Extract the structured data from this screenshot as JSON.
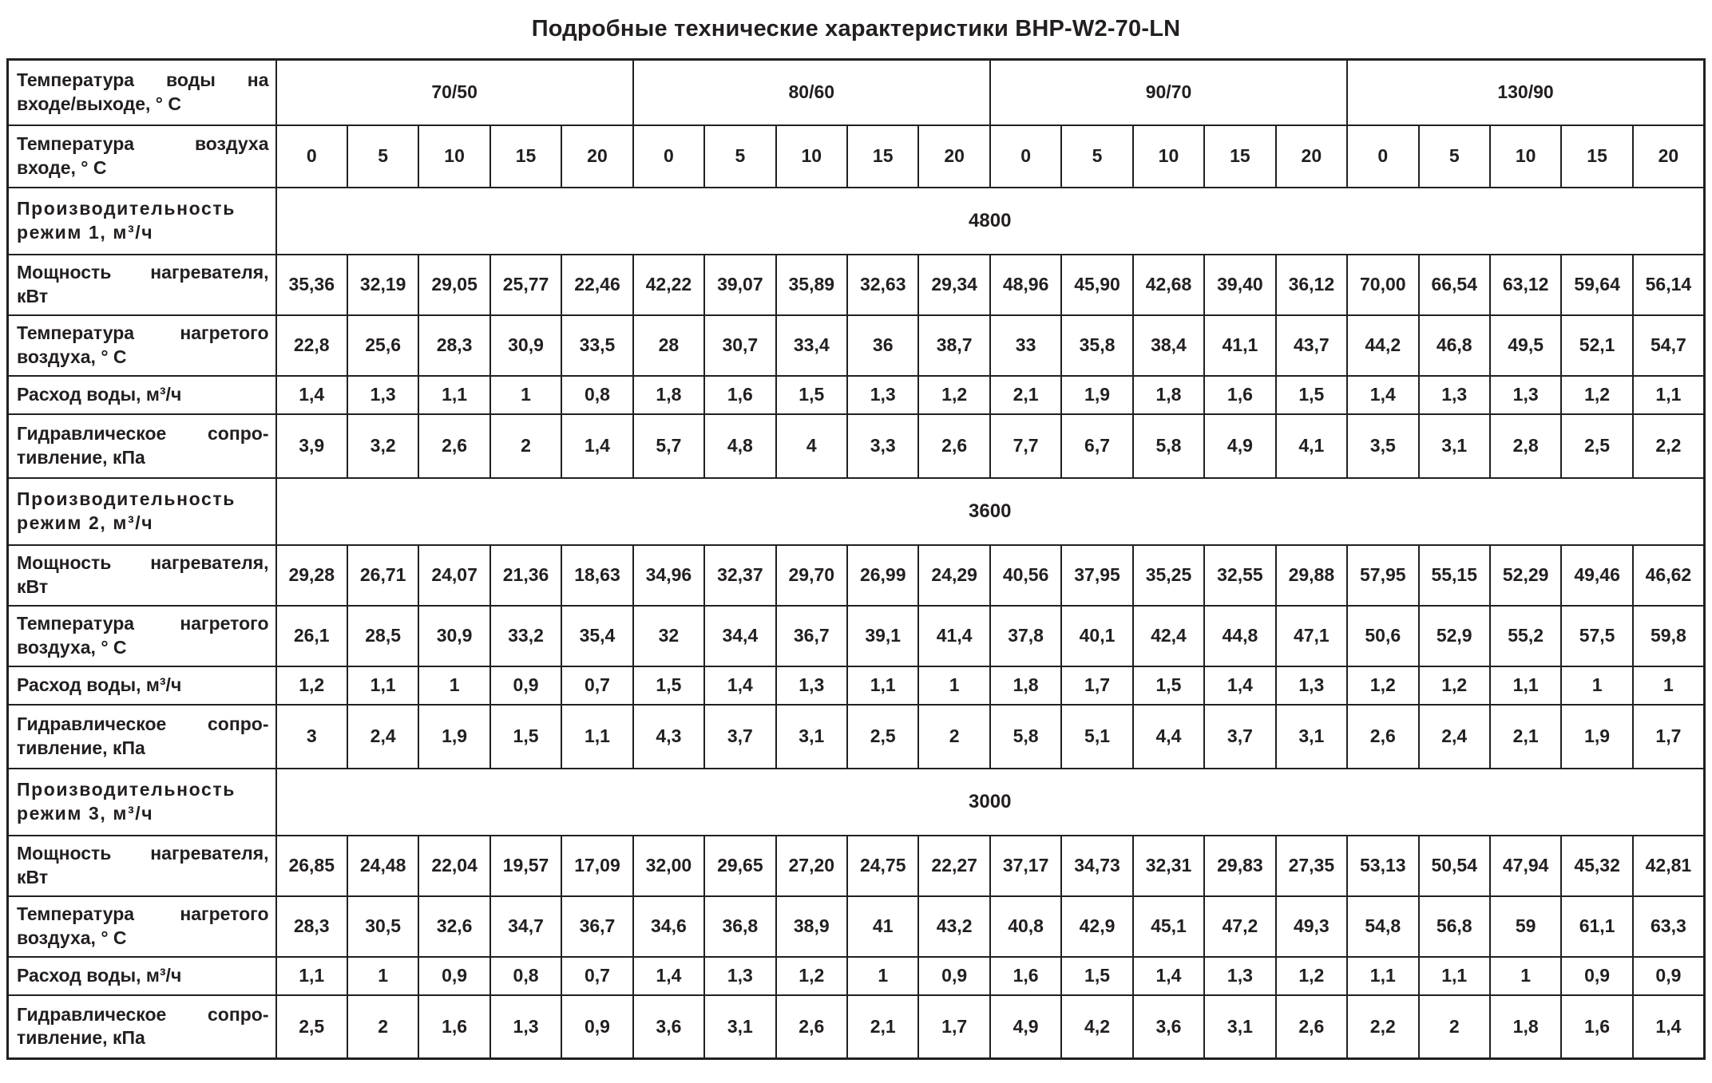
{
  "title": "Подробные технические характеристики BHP-W2-70-LN",
  "table": {
    "row_labels": {
      "water_temp": "Температура воды на входе/выходе, ° С",
      "air_temp": "Температура воздуха входе, ° С",
      "heater_power": "Мощность нагревателя, кВт",
      "heated_air_temp": "Температура нагретого воздуха, ° С",
      "water_flow": "Расход воды, м³/ч",
      "hydraulic_resistance": "Гидравлическое сопро-тивление, кПа"
    },
    "water_temp_groups": [
      "70/50",
      "80/60",
      "90/70",
      "130/90"
    ],
    "air_temp_row": [
      "0",
      "5",
      "10",
      "15",
      "20",
      "0",
      "5",
      "10",
      "15",
      "20",
      "0",
      "5",
      "10",
      "15",
      "20",
      "0",
      "5",
      "10",
      "15",
      "20"
    ],
    "sections": [
      {
        "capacity_label": "Производительность режим 1, м³/ч",
        "capacity_value": "4800",
        "heater_power": [
          "35,36",
          "32,19",
          "29,05",
          "25,77",
          "22,46",
          "42,22",
          "39,07",
          "35,89",
          "32,63",
          "29,34",
          "48,96",
          "45,90",
          "42,68",
          "39,40",
          "36,12",
          "70,00",
          "66,54",
          "63,12",
          "59,64",
          "56,14"
        ],
        "heated_air_temp": [
          "22,8",
          "25,6",
          "28,3",
          "30,9",
          "33,5",
          "28",
          "30,7",
          "33,4",
          "36",
          "38,7",
          "33",
          "35,8",
          "38,4",
          "41,1",
          "43,7",
          "44,2",
          "46,8",
          "49,5",
          "52,1",
          "54,7"
        ],
        "water_flow": [
          "1,4",
          "1,3",
          "1,1",
          "1",
          "0,8",
          "1,8",
          "1,6",
          "1,5",
          "1,3",
          "1,2",
          "2,1",
          "1,9",
          "1,8",
          "1,6",
          "1,5",
          "1,4",
          "1,3",
          "1,3",
          "1,2",
          "1,1"
        ],
        "hydraulic_resistance": [
          "3,9",
          "3,2",
          "2,6",
          "2",
          "1,4",
          "5,7",
          "4,8",
          "4",
          "3,3",
          "2,6",
          "7,7",
          "6,7",
          "5,8",
          "4,9",
          "4,1",
          "3,5",
          "3,1",
          "2,8",
          "2,5",
          "2,2"
        ]
      },
      {
        "capacity_label": "Производительность режим 2, м³/ч",
        "capacity_value": "3600",
        "heater_power": [
          "29,28",
          "26,71",
          "24,07",
          "21,36",
          "18,63",
          "34,96",
          "32,37",
          "29,70",
          "26,99",
          "24,29",
          "40,56",
          "37,95",
          "35,25",
          "32,55",
          "29,88",
          "57,95",
          "55,15",
          "52,29",
          "49,46",
          "46,62"
        ],
        "heated_air_temp": [
          "26,1",
          "28,5",
          "30,9",
          "33,2",
          "35,4",
          "32",
          "34,4",
          "36,7",
          "39,1",
          "41,4",
          "37,8",
          "40,1",
          "42,4",
          "44,8",
          "47,1",
          "50,6",
          "52,9",
          "55,2",
          "57,5",
          "59,8"
        ],
        "water_flow": [
          "1,2",
          "1,1",
          "1",
          "0,9",
          "0,7",
          "1,5",
          "1,4",
          "1,3",
          "1,1",
          "1",
          "1,8",
          "1,7",
          "1,5",
          "1,4",
          "1,3",
          "1,2",
          "1,2",
          "1,1",
          "1",
          "1"
        ],
        "hydraulic_resistance": [
          "3",
          "2,4",
          "1,9",
          "1,5",
          "1,1",
          "4,3",
          "3,7",
          "3,1",
          "2,5",
          "2",
          "5,8",
          "5,1",
          "4,4",
          "3,7",
          "3,1",
          "2,6",
          "2,4",
          "2,1",
          "1,9",
          "1,7"
        ]
      },
      {
        "capacity_label": "Производительность режим 3, м³/ч",
        "capacity_value": "3000",
        "heater_power": [
          "26,85",
          "24,48",
          "22,04",
          "19,57",
          "17,09",
          "32,00",
          "29,65",
          "27,20",
          "24,75",
          "22,27",
          "37,17",
          "34,73",
          "32,31",
          "29,83",
          "27,35",
          "53,13",
          "50,54",
          "47,94",
          "45,32",
          "42,81"
        ],
        "heated_air_temp": [
          "28,3",
          "30,5",
          "32,6",
          "34,7",
          "36,7",
          "34,6",
          "36,8",
          "38,9",
          "41",
          "43,2",
          "40,8",
          "42,9",
          "45,1",
          "47,2",
          "49,3",
          "54,8",
          "56,8",
          "59",
          "61,1",
          "63,3"
        ],
        "water_flow": [
          "1,1",
          "1",
          "0,9",
          "0,8",
          "0,7",
          "1,4",
          "1,3",
          "1,2",
          "1",
          "0,9",
          "1,6",
          "1,5",
          "1,4",
          "1,3",
          "1,2",
          "1,1",
          "1,1",
          "1",
          "0,9",
          "0,9"
        ],
        "hydraulic_resistance": [
          "2,5",
          "2",
          "1,6",
          "1,3",
          "0,9",
          "3,6",
          "3,1",
          "2,6",
          "2,1",
          "1,7",
          "4,9",
          "4,2",
          "3,6",
          "3,1",
          "2,6",
          "2,2",
          "2",
          "1,8",
          "1,6",
          "1,4"
        ]
      }
    ]
  }
}
